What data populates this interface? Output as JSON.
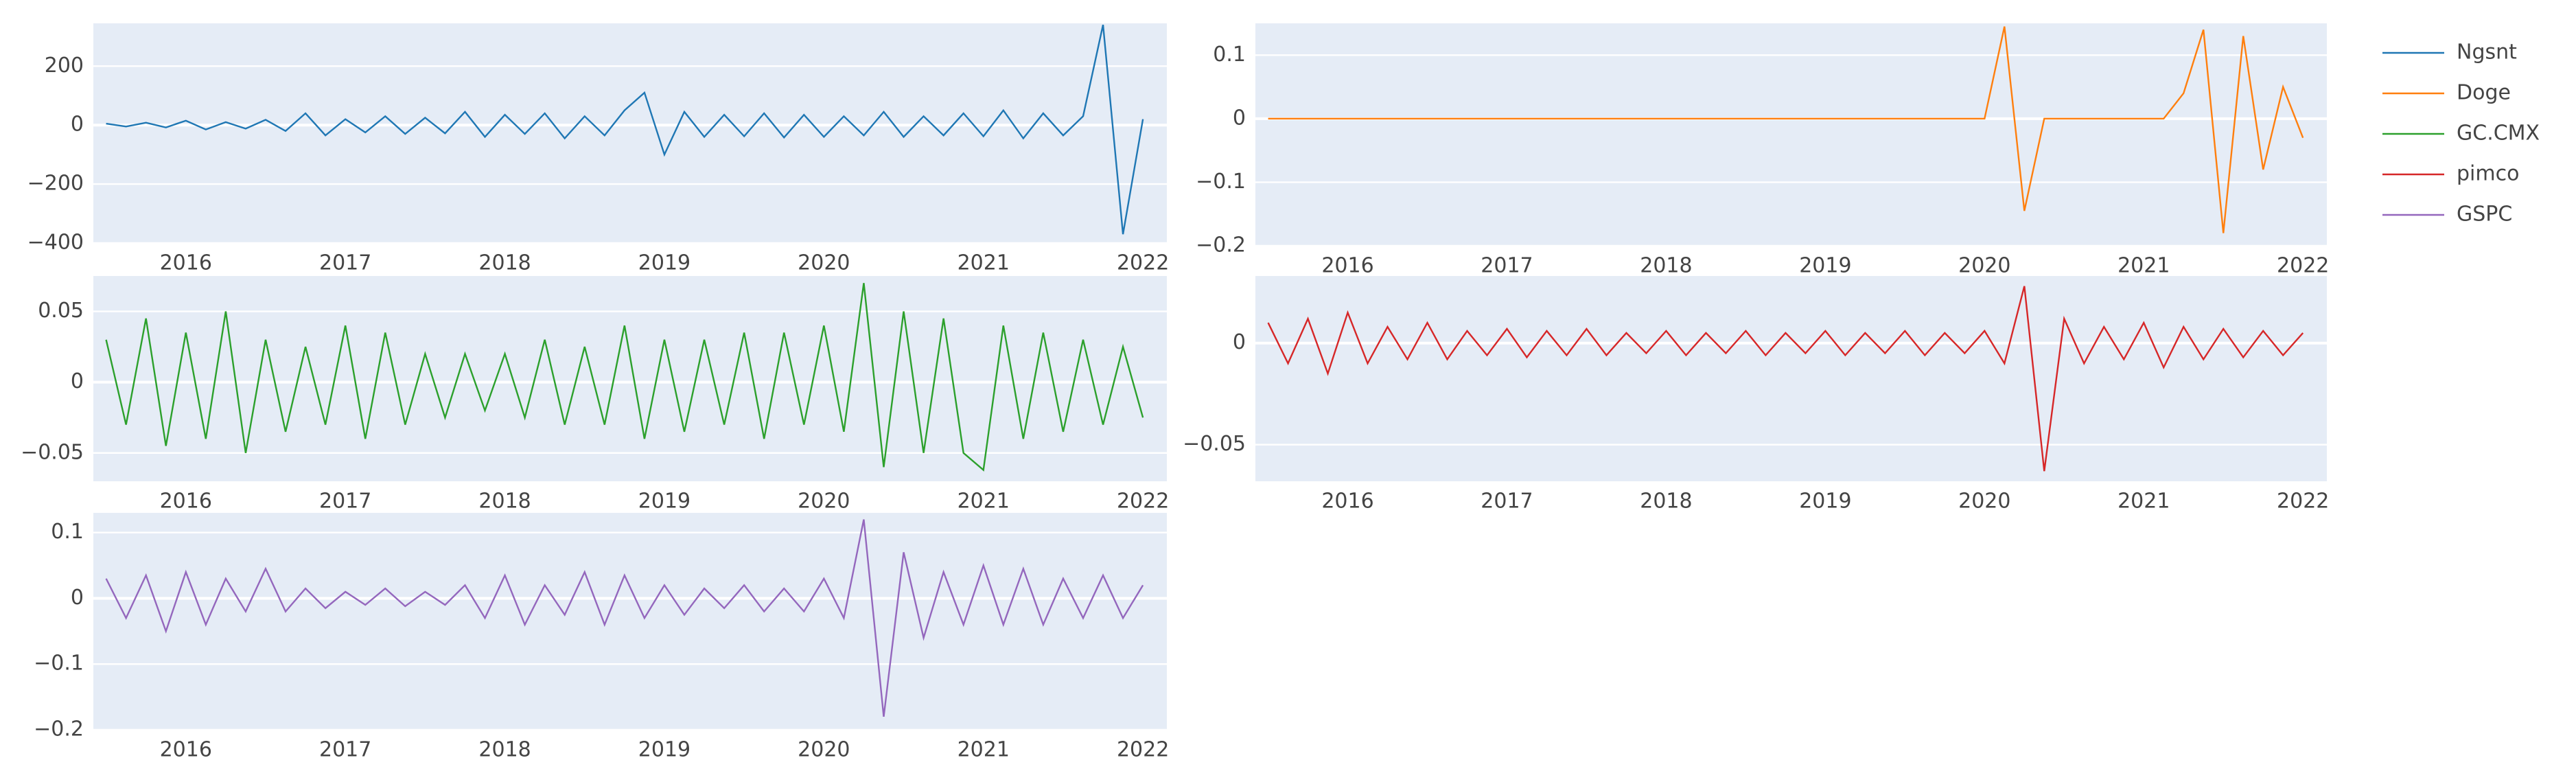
{
  "legend": "top-right",
  "chart_data": [
    {
      "type": "line",
      "x": [
        2015.5,
        2015.625,
        2015.75,
        2015.875,
        2016,
        2016.125,
        2016.25,
        2016.375,
        2016.5,
        2016.625,
        2016.75,
        2016.875,
        2017,
        2017.125,
        2017.25,
        2017.375,
        2017.5,
        2017.625,
        2017.75,
        2017.875,
        2018,
        2018.125,
        2018.25,
        2018.375,
        2018.5,
        2018.625,
        2018.75,
        2018.875,
        2019,
        2019.125,
        2019.25,
        2019.375,
        2019.5,
        2019.625,
        2019.75,
        2019.875,
        2020,
        2020.125,
        2020.25,
        2020.375,
        2020.5,
        2020.625,
        2020.75,
        2020.875,
        2021,
        2021.125,
        2021.25,
        2021.375,
        2021.5,
        2021.625,
        2021.75,
        2021.875,
        2022
      ],
      "series": [
        {
          "name": "Ngsnt",
          "color": "#1f77b4",
          "values": [
            5,
            -5,
            8,
            -8,
            15,
            -15,
            10,
            -12,
            18,
            -20,
            40,
            -35,
            20,
            -25,
            30,
            -30,
            25,
            -28,
            45,
            -40,
            35,
            -30,
            40,
            -45,
            30,
            -35,
            50,
            110,
            -100,
            45,
            -40,
            35,
            -38,
            40,
            -42,
            35,
            -40,
            30,
            -35,
            45,
            -40,
            30,
            -35,
            40,
            -38,
            50,
            -45,
            40,
            -35,
            30,
            340,
            -370,
            20
          ]
        }
      ],
      "xlim": [
        2015.42,
        2022.15
      ],
      "xticks": [
        2016,
        2017,
        2018,
        2019,
        2020,
        2021,
        2022
      ],
      "ylim": [
        -400,
        345
      ],
      "yticks": [
        {
          "value": -400,
          "label": "−400"
        },
        {
          "value": -200,
          "label": "−200"
        },
        0,
        200
      ],
      "grid": true
    },
    {
      "type": "line",
      "x": [
        2015.5,
        2015.625,
        2015.75,
        2015.875,
        2016,
        2016.125,
        2016.25,
        2016.375,
        2016.5,
        2016.625,
        2016.75,
        2016.875,
        2017,
        2017.125,
        2017.25,
        2017.375,
        2017.5,
        2017.625,
        2017.75,
        2017.875,
        2018,
        2018.125,
        2018.25,
        2018.375,
        2018.5,
        2018.625,
        2018.75,
        2018.875,
        2019,
        2019.125,
        2019.25,
        2019.375,
        2019.5,
        2019.625,
        2019.75,
        2019.875,
        2020,
        2020.125,
        2020.25,
        2020.375,
        2020.5,
        2020.625,
        2020.75,
        2020.875,
        2021,
        2021.125,
        2021.25,
        2021.375,
        2021.5,
        2021.625,
        2021.75,
        2021.875,
        2022
      ],
      "series": [
        {
          "name": "Doge",
          "color": "#ff7f0e",
          "values": [
            0,
            0,
            0,
            0,
            0,
            0,
            0,
            0,
            0,
            0,
            0,
            0,
            0,
            0,
            0,
            0,
            0,
            0,
            0,
            0,
            0,
            0,
            0,
            0,
            0,
            0,
            0,
            0,
            0,
            0,
            0,
            0,
            0,
            0,
            0,
            0,
            0,
            0.145,
            -0.145,
            0,
            0,
            0,
            0,
            0,
            0,
            0,
            0.04,
            0.14,
            -0.18,
            0.13,
            -0.08,
            0.05,
            -0.03
          ]
        }
      ],
      "xlim": [
        2015.42,
        2022.15
      ],
      "xticks": [
        2016,
        2017,
        2018,
        2019,
        2020,
        2021,
        2022
      ],
      "ylim": [
        -0.2,
        0.15
      ],
      "yticks": [
        {
          "value": -0.2,
          "label": "−0.2"
        },
        {
          "value": -0.1,
          "label": "−0.1"
        },
        0,
        0.1
      ],
      "grid": true
    },
    {
      "type": "line",
      "x": [
        2015.5,
        2015.625,
        2015.75,
        2015.875,
        2016,
        2016.125,
        2016.25,
        2016.375,
        2016.5,
        2016.625,
        2016.75,
        2016.875,
        2017,
        2017.125,
        2017.25,
        2017.375,
        2017.5,
        2017.625,
        2017.75,
        2017.875,
        2018,
        2018.125,
        2018.25,
        2018.375,
        2018.5,
        2018.625,
        2018.75,
        2018.875,
        2019,
        2019.125,
        2019.25,
        2019.375,
        2019.5,
        2019.625,
        2019.75,
        2019.875,
        2020,
        2020.125,
        2020.25,
        2020.375,
        2020.5,
        2020.625,
        2020.75,
        2020.875,
        2021,
        2021.125,
        2021.25,
        2021.375,
        2021.5,
        2021.625,
        2021.75,
        2021.875,
        2022
      ],
      "series": [
        {
          "name": "GC.CMX",
          "color": "#2ca02c",
          "values": [
            0.03,
            -0.03,
            0.045,
            -0.045,
            0.035,
            -0.04,
            0.05,
            -0.05,
            0.03,
            -0.035,
            0.025,
            -0.03,
            0.04,
            -0.04,
            0.035,
            -0.03,
            0.02,
            -0.025,
            0.02,
            -0.02,
            0.02,
            -0.025,
            0.03,
            -0.03,
            0.025,
            -0.03,
            0.04,
            -0.04,
            0.03,
            -0.035,
            0.03,
            -0.03,
            0.035,
            -0.04,
            0.035,
            -0.03,
            0.04,
            -0.035,
            0.07,
            -0.06,
            0.05,
            -0.05,
            0.045,
            -0.05,
            -0.062,
            0.04,
            -0.04,
            0.035,
            -0.035,
            0.03,
            -0.03,
            0.025,
            -0.025
          ]
        }
      ],
      "xlim": [
        2015.42,
        2022.15
      ],
      "xticks": [
        2016,
        2017,
        2018,
        2019,
        2020,
        2021,
        2022
      ],
      "ylim": [
        -0.07,
        0.075
      ],
      "yticks": [
        {
          "value": -0.05,
          "label": "−0.05"
        },
        0,
        0.05
      ],
      "grid": true
    },
    {
      "type": "line",
      "x": [
        2015.5,
        2015.625,
        2015.75,
        2015.875,
        2016,
        2016.125,
        2016.25,
        2016.375,
        2016.5,
        2016.625,
        2016.75,
        2016.875,
        2017,
        2017.125,
        2017.25,
        2017.375,
        2017.5,
        2017.625,
        2017.75,
        2017.875,
        2018,
        2018.125,
        2018.25,
        2018.375,
        2018.5,
        2018.625,
        2018.75,
        2018.875,
        2019,
        2019.125,
        2019.25,
        2019.375,
        2019.5,
        2019.625,
        2019.75,
        2019.875,
        2020,
        2020.125,
        2020.25,
        2020.375,
        2020.5,
        2020.625,
        2020.75,
        2020.875,
        2021,
        2021.125,
        2021.25,
        2021.375,
        2021.5,
        2021.625,
        2021.75,
        2021.875,
        2022
      ],
      "series": [
        {
          "name": "pimco",
          "color": "#d62728",
          "values": [
            0.01,
            -0.01,
            0.012,
            -0.015,
            0.015,
            -0.01,
            0.008,
            -0.008,
            0.01,
            -0.008,
            0.006,
            -0.006,
            0.007,
            -0.007,
            0.006,
            -0.006,
            0.007,
            -0.006,
            0.005,
            -0.005,
            0.006,
            -0.006,
            0.005,
            -0.005,
            0.006,
            -0.006,
            0.005,
            -0.005,
            0.006,
            -0.006,
            0.005,
            -0.005,
            0.006,
            -0.006,
            0.005,
            -0.005,
            0.006,
            -0.01,
            0.028,
            -0.063,
            0.012,
            -0.01,
            0.008,
            -0.008,
            0.01,
            -0.012,
            0.008,
            -0.008,
            0.007,
            -0.007,
            0.006,
            -0.006,
            0.005
          ]
        }
      ],
      "xlim": [
        2015.42,
        2022.15
      ],
      "xticks": [
        2016,
        2017,
        2018,
        2019,
        2020,
        2021,
        2022
      ],
      "ylim": [
        -0.068,
        0.033
      ],
      "yticks": [
        {
          "value": -0.05,
          "label": "−0.05"
        },
        0
      ],
      "grid": true
    },
    {
      "type": "line",
      "x": [
        2015.5,
        2015.625,
        2015.75,
        2015.875,
        2016,
        2016.125,
        2016.25,
        2016.375,
        2016.5,
        2016.625,
        2016.75,
        2016.875,
        2017,
        2017.125,
        2017.25,
        2017.375,
        2017.5,
        2017.625,
        2017.75,
        2017.875,
        2018,
        2018.125,
        2018.25,
        2018.375,
        2018.5,
        2018.625,
        2018.75,
        2018.875,
        2019,
        2019.125,
        2019.25,
        2019.375,
        2019.5,
        2019.625,
        2019.75,
        2019.875,
        2020,
        2020.125,
        2020.25,
        2020.375,
        2020.5,
        2020.625,
        2020.75,
        2020.875,
        2021,
        2021.125,
        2021.25,
        2021.375,
        2021.5,
        2021.625,
        2021.75,
        2021.875,
        2022
      ],
      "series": [
        {
          "name": "GSPC",
          "color": "#9467bd",
          "values": [
            0.03,
            -0.03,
            0.035,
            -0.05,
            0.04,
            -0.04,
            0.03,
            -0.02,
            0.045,
            -0.02,
            0.015,
            -0.015,
            0.01,
            -0.01,
            0.015,
            -0.012,
            0.01,
            -0.01,
            0.02,
            -0.03,
            0.035,
            -0.04,
            0.02,
            -0.025,
            0.04,
            -0.04,
            0.035,
            -0.03,
            0.02,
            -0.025,
            0.015,
            -0.015,
            0.02,
            -0.02,
            0.015,
            -0.02,
            0.03,
            -0.03,
            0.12,
            -0.18,
            0.07,
            -0.06,
            0.04,
            -0.04,
            0.05,
            -0.04,
            0.045,
            -0.04,
            0.03,
            -0.03,
            0.035,
            -0.03,
            0.02
          ]
        }
      ],
      "xlim": [
        2015.42,
        2022.15
      ],
      "xticks": [
        2016,
        2017,
        2018,
        2019,
        2020,
        2021,
        2022
      ],
      "ylim": [
        -0.2,
        0.13
      ],
      "yticks": [
        {
          "value": -0.2,
          "label": "−0.2"
        },
        {
          "value": -0.1,
          "label": "−0.1"
        },
        0,
        0.1
      ],
      "grid": true
    }
  ]
}
